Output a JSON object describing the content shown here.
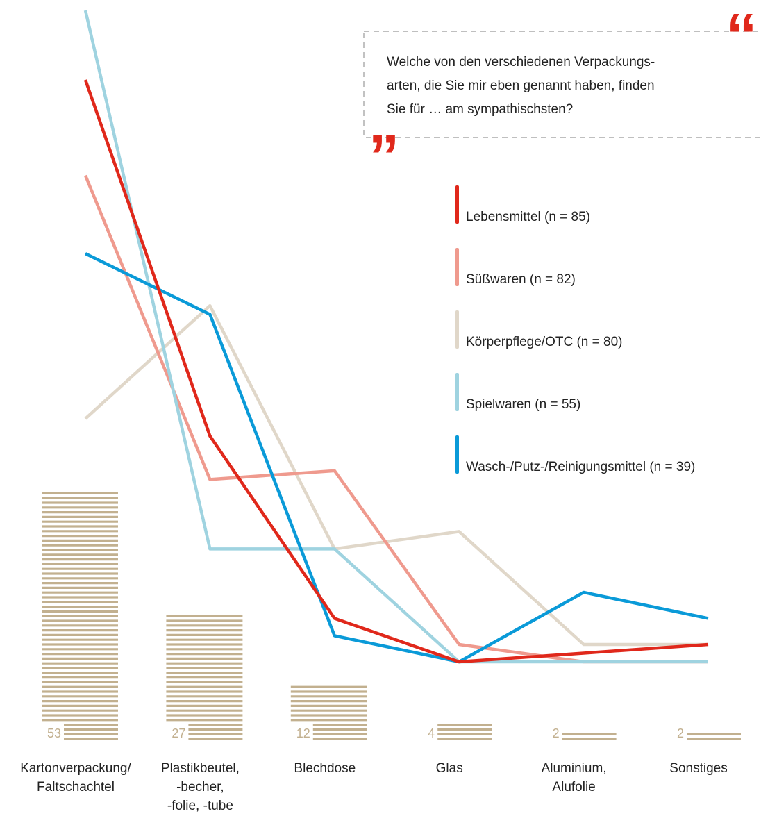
{
  "chart_data": {
    "type": "line",
    "question": [
      "Welche von den verschiedenen Verpackungs-",
      "arten, die Sie mir eben genannt haben, finden",
      "Sie für … am sympathischsten?"
    ],
    "quote_open": "“",
    "quote_close": "”",
    "categories": [
      [
        "Kartonverpackung/",
        "Faltschachtel"
      ],
      [
        "Plastikbeutel,",
        "-becher,",
        "-folie, -tube"
      ],
      [
        "Blechdose"
      ],
      [
        "Glas"
      ],
      [
        "Aluminium,",
        "Alufolie"
      ],
      [
        "Sonstiges"
      ]
    ],
    "bars": {
      "values": [
        53,
        27,
        12,
        4,
        2,
        2
      ],
      "color": "#c2b08f"
    },
    "ylim": [
      0,
      75
    ],
    "series": [
      {
        "name": "Lebensmittel (n = 85)",
        "color": "#e0281b",
        "values": [
          67,
          26,
          5,
          0,
          1,
          2
        ]
      },
      {
        "name": "Süßwaren (n = 82)",
        "color": "#ef9a8e",
        "values": [
          56,
          21,
          22,
          2,
          0,
          0
        ]
      },
      {
        "name": "Körperpflege/OTC (n = 80)",
        "color": "#e0d7c9",
        "values": [
          28,
          41,
          13,
          15,
          2,
          2
        ]
      },
      {
        "name": "Spielwaren (n = 55)",
        "color": "#9fd3e0",
        "values": [
          75,
          13,
          13,
          0,
          0,
          0
        ]
      },
      {
        "name": "Wasch-/Putz-/Reinigungsmittel (n = 39)",
        "color": "#0a9ad8",
        "values": [
          47,
          40,
          3,
          0,
          8,
          5
        ]
      }
    ]
  }
}
